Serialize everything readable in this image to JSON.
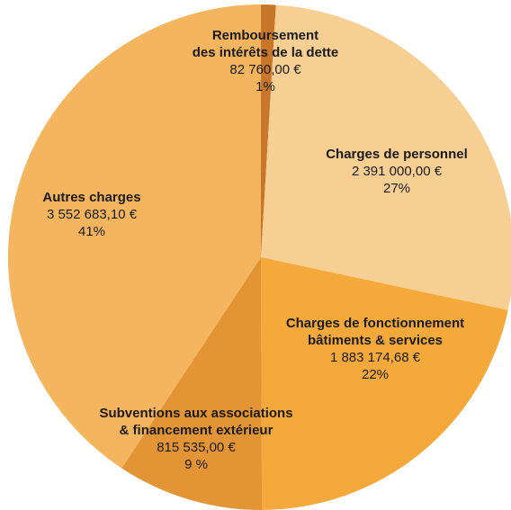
{
  "chart_data": {
    "type": "pie",
    "categories": [
      [
        "Remboursement",
        "des intérêts de la dette"
      ],
      [
        "Charges de personnel"
      ],
      [
        "Charges de fonctionnement",
        "bâtiments & services"
      ],
      [
        "Subventions aux associations",
        "& financement extérieur"
      ],
      [
        "Autres charges"
      ]
    ],
    "values": [
      82760,
      2391000,
      1883174.68,
      815535,
      3552683.1
    ],
    "value_labels": [
      "82 760,00 €",
      "2 391 000,00 €",
      "1 883 174,68 €",
      "815 535,00 €",
      "3 552 683,10 €"
    ],
    "percent_labels": [
      "1%",
      "27%",
      "22%",
      "9 %",
      "41%"
    ],
    "colors": [
      "#c8762a",
      "#f8cf92",
      "#f6a93b",
      "#e39535",
      "#f5b55f"
    ]
  }
}
